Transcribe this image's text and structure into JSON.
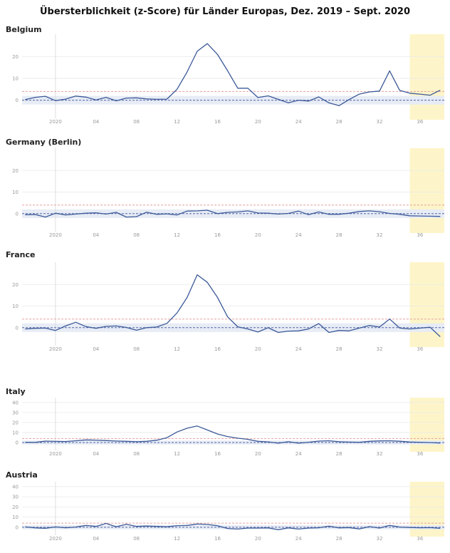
{
  "title": "Übersterblichkeit (z-Score) für Länder Europas, Dez. 2019 – Sept. 2020",
  "colors": {
    "line": "#3b5998",
    "threshold": "#e8a0a0",
    "baseline": "#5566aa",
    "band": "#e7ecf5",
    "highlight": "#fdf5c9",
    "grid": "#e9e9e9",
    "year_divider": "#d6d6d6"
  },
  "chart_data": [
    {
      "type": "line",
      "country": "Belgium",
      "xlabel": "",
      "ylabel": "",
      "x_ticks": [
        "2020",
        "04",
        "08",
        "12",
        "16",
        "20",
        "24",
        "28",
        "32",
        "36"
      ],
      "y_ticks": [
        0,
        10,
        20
      ],
      "ylim": [
        -7,
        29
      ],
      "threshold": 4,
      "grid": true,
      "highlight_weeks": [
        35,
        38.5
      ],
      "series": [
        {
          "x": [
            -3,
            -2,
            -1,
            0,
            1,
            2,
            3,
            4,
            5,
            6,
            7,
            8,
            9,
            10,
            11,
            12,
            13,
            14,
            15,
            16,
            17,
            18,
            19,
            20,
            21,
            22,
            23,
            24,
            25,
            26,
            27,
            28,
            29,
            30,
            31,
            32,
            33,
            34,
            35,
            36,
            37,
            38
          ],
          "values": [
            0.3,
            1.3,
            1.8,
            -0.2,
            0.5,
            1.9,
            1.4,
            0.1,
            1.3,
            -0.3,
            1.0,
            1.1,
            0.6,
            0.4,
            0.5,
            5,
            13,
            22.5,
            26,
            21,
            13.5,
            5.5,
            5.5,
            1.2,
            2,
            0.4,
            -1.2,
            0,
            -0.4,
            1.5,
            -1.2,
            -2.5,
            0.3,
            2.8,
            3.8,
            4.2,
            13.5,
            4.5,
            3.2,
            2.8,
            2.3,
            4.6
          ]
        }
      ]
    },
    {
      "type": "line",
      "country": "Germany (Berlin)",
      "xlabel": "",
      "ylabel": "",
      "x_ticks": [
        "2020",
        "04",
        "08",
        "12",
        "16",
        "20",
        "24",
        "28",
        "32",
        "36"
      ],
      "y_ticks": [
        0,
        10,
        20
      ],
      "ylim": [
        -7,
        29
      ],
      "threshold": 4,
      "grid": true,
      "highlight_weeks": [
        35,
        38.5
      ],
      "series": [
        {
          "x": [
            -3,
            -2,
            -1,
            0,
            1,
            2,
            3,
            4,
            5,
            6,
            7,
            8,
            9,
            10,
            11,
            12,
            13,
            14,
            15,
            16,
            17,
            18,
            19,
            20,
            21,
            22,
            23,
            24,
            25,
            26,
            27,
            28,
            29,
            30,
            31,
            32,
            33,
            34,
            35,
            36,
            37,
            38
          ],
          "values": [
            -0.5,
            -0.4,
            -1.6,
            0.2,
            -0.6,
            -0.2,
            0.2,
            0.4,
            -0.2,
            0.6,
            -1.6,
            -1.4,
            0.7,
            -0.3,
            -0.1,
            -0.6,
            1.2,
            1.3,
            1.6,
            0,
            0.6,
            0.8,
            1.3,
            0.3,
            0.2,
            -0.2,
            0.1,
            1.2,
            -0.5,
            0.8,
            -0.3,
            -0.3,
            0.2,
            1.0,
            1.3,
            0.9,
            0.1,
            -0.3,
            -1.0,
            -1.1,
            -1.2,
            -1.3
          ]
        }
      ]
    },
    {
      "type": "line",
      "country": "France",
      "xlabel": "",
      "ylabel": "",
      "x_ticks": [
        "2020",
        "04",
        "08",
        "12",
        "16",
        "20",
        "24",
        "28",
        "32",
        "36"
      ],
      "y_ticks": [
        0,
        10,
        20
      ],
      "ylim": [
        -7,
        29
      ],
      "threshold": 4,
      "grid": true,
      "highlight_weeks": [
        35,
        38.5
      ],
      "series": [
        {
          "x": [
            -3,
            -2,
            -1,
            0,
            1,
            2,
            3,
            4,
            5,
            6,
            7,
            8,
            9,
            10,
            11,
            12,
            13,
            14,
            15,
            16,
            17,
            18,
            19,
            20,
            21,
            22,
            23,
            24,
            25,
            26,
            27,
            28,
            29,
            30,
            31,
            32,
            33,
            34,
            35,
            36,
            37,
            38
          ],
          "values": [
            -0.6,
            -0.3,
            -0.2,
            -1.3,
            0.8,
            2.5,
            0.5,
            -0.3,
            0.6,
            0.8,
            0.1,
            -1.2,
            0,
            0.3,
            2,
            6.8,
            14,
            24.5,
            21,
            14,
            5,
            0.4,
            -0.6,
            -2,
            0,
            -2.2,
            -1.6,
            -1.5,
            -0.6,
            1.9,
            -2.2,
            -1.3,
            -1.5,
            -0.2,
            1,
            0.3,
            4,
            -0.2,
            -0.6,
            -0.2,
            0.2,
            -4.2
          ]
        }
      ]
    },
    {
      "type": "line",
      "country": "Italy",
      "xlabel": "",
      "ylabel": "",
      "x_ticks": [
        "2020",
        "04",
        "08",
        "12",
        "16",
        "20",
        "24",
        "28",
        "32",
        "36"
      ],
      "y_ticks": [
        0,
        10,
        20,
        30,
        40
      ],
      "ylim": [
        -5,
        42
      ],
      "threshold": 4,
      "grid": true,
      "highlight_weeks": [
        35,
        38.5
      ],
      "series": [
        {
          "x": [
            -3,
            -2,
            -1,
            0,
            1,
            2,
            3,
            4,
            5,
            6,
            7,
            8,
            9,
            10,
            11,
            12,
            13,
            14,
            15,
            16,
            17,
            18,
            19,
            20,
            21,
            22,
            23,
            24,
            25,
            26,
            27,
            28,
            29,
            30,
            31,
            32,
            33,
            34,
            35,
            36,
            37,
            38
          ],
          "values": [
            0.2,
            0.1,
            1.4,
            1.1,
            1.0,
            1.8,
            2.6,
            2.4,
            2.0,
            1.5,
            1.2,
            0.8,
            1.2,
            2.3,
            4.8,
            10.5,
            14.3,
            16.5,
            12.5,
            8.5,
            6,
            4.3,
            3.2,
            1.2,
            0.6,
            -0.6,
            0.8,
            -0.6,
            0.3,
            1.4,
            1.8,
            0.8,
            0.4,
            0.2,
            1.2,
            1.6,
            1.8,
            1.3,
            0.5,
            0.2,
            0,
            -0.5
          ]
        }
      ]
    },
    {
      "type": "line",
      "country": "Austria",
      "xlabel": "",
      "ylabel": "",
      "x_ticks": [
        "2020",
        "04",
        "08",
        "12",
        "16",
        "20",
        "24",
        "28",
        "32",
        "36"
      ],
      "y_ticks": [
        0,
        10,
        20,
        30,
        40
      ],
      "ylim": [
        -5,
        42
      ],
      "threshold": 4,
      "grid": true,
      "highlight_weeks": [
        35,
        38.5
      ],
      "series": [
        {
          "x": [
            -3,
            -2,
            -1,
            0,
            1,
            2,
            3,
            4,
            5,
            6,
            7,
            8,
            9,
            10,
            11,
            12,
            13,
            14,
            15,
            16,
            17,
            18,
            19,
            20,
            21,
            22,
            23,
            24,
            25,
            26,
            27,
            28,
            29,
            30,
            31,
            32,
            33,
            34,
            35,
            36,
            37,
            38
          ],
          "values": [
            0.3,
            -0.6,
            -1,
            0.3,
            -0.5,
            0.2,
            1.8,
            0.8,
            3.8,
            0.5,
            3.0,
            0.8,
            1.2,
            0.8,
            0.5,
            1.6,
            1.8,
            3.2,
            2.8,
            1.5,
            -1.2,
            -1.8,
            -0.8,
            -0.8,
            -0.6,
            -2.5,
            -0.6,
            -1.8,
            -0.8,
            -0.5,
            1.0,
            -0.6,
            -0.3,
            -1.6,
            0.6,
            -0.8,
            1.8,
            0.2,
            -0.2,
            -0.5,
            -0.4,
            -1
          ]
        }
      ]
    }
  ]
}
